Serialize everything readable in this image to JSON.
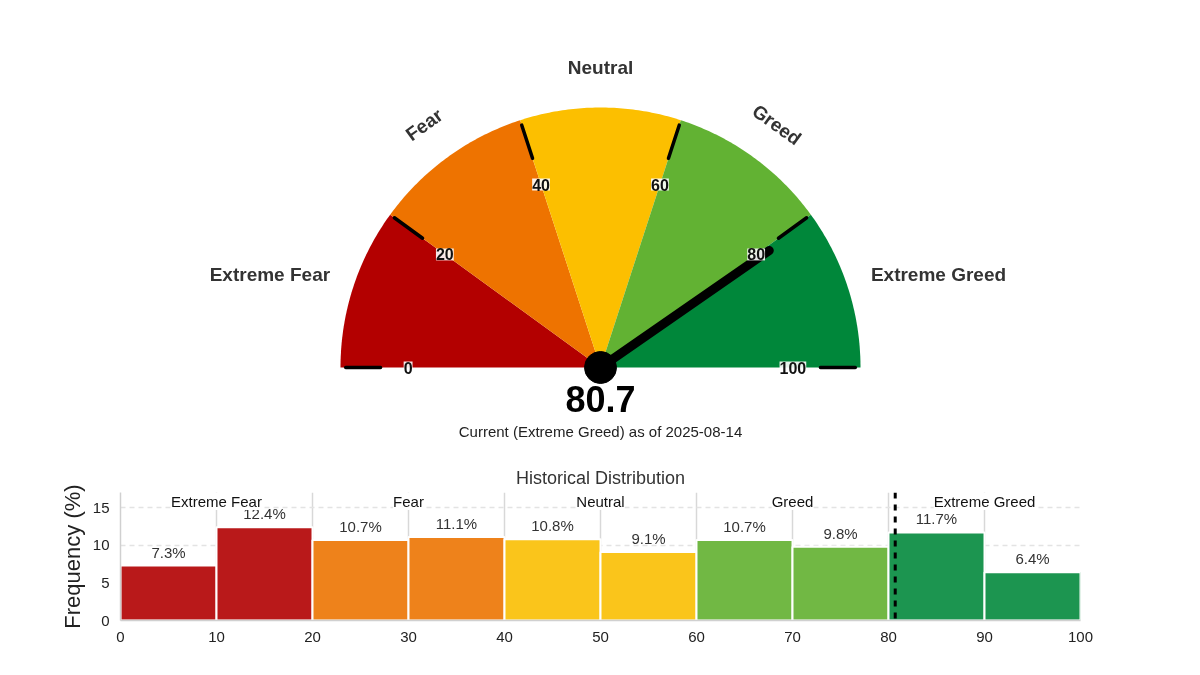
{
  "chart_data": [
    {
      "type": "pie",
      "categories": [
        "Extreme Fear",
        "Fear",
        "Neutral",
        "Greed",
        "Extreme Greed"
      ],
      "values": [
        20,
        20,
        20,
        20,
        20
      ],
      "colors": [
        "#b30000",
        "#ee7300",
        "#fcbf00",
        "#62b233",
        "#00873a"
      ],
      "needle": "Extreme Greed",
      "annotations": [
        "0",
        "20",
        "40",
        "60",
        "80",
        "100",
        "80.7",
        "Current (Extreme Greed) as of 2025-08-14"
      ]
    },
    {
      "type": "histogram",
      "title": "Historical Distribution",
      "ylabel": "Frequency (%)",
      "bins": [
        0,
        10,
        20,
        30,
        40,
        50,
        60,
        70,
        80,
        90,
        100
      ],
      "values": [
        7.3,
        12.4,
        10.7,
        11.1,
        10.8,
        9.1,
        10.7,
        9.8,
        11.7,
        6.4
      ],
      "colors": [
        "#b9191a",
        "#b9191a",
        "#ee821b",
        "#ee821b",
        "#fac51b",
        "#fac51b",
        "#71b844",
        "#71b844",
        "#1c9550",
        "#1c9550"
      ],
      "value_labels": [
        "7.3%",
        "12.4%",
        "10.7%",
        "11.1%",
        "10.8%",
        "9.1%",
        "10.7%",
        "9.8%",
        "11.7%",
        "6.4%"
      ],
      "xlim": [
        0,
        100
      ],
      "xticks": [
        0,
        10,
        20,
        30,
        40,
        50,
        60,
        70,
        80,
        90,
        100
      ],
      "ylim": [
        0,
        17
      ],
      "yticks": [
        0,
        5,
        10,
        15
      ],
      "grid": true,
      "ref_lines": [
        {
          "axis": "x",
          "value": 80.7,
          "color": "#000000",
          "line_style": "dashed"
        }
      ],
      "annotations": [
        "Extreme Fear",
        "Fear",
        "Neutral",
        "Greed",
        "Extreme Greed"
      ]
    }
  ]
}
